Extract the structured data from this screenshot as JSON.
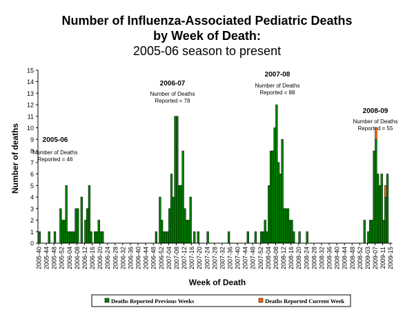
{
  "chart_data": {
    "type": "bar",
    "stacked": true,
    "title": [
      "Number of Influenza-Associated Pediatric Deaths",
      "by Week of Death:",
      "2005-06 season to present"
    ],
    "xlabel": "Week of Death",
    "ylabel": "Number of deaths",
    "ylim": [
      0,
      15
    ],
    "yticks": [
      0,
      1,
      2,
      3,
      4,
      5,
      6,
      7,
      8,
      9,
      10,
      11,
      12,
      13,
      14,
      15
    ],
    "x_range": [
      "2005-40",
      "2009-15"
    ],
    "xtick_labels": [
      "2005-40",
      "2005-44",
      "2005-48",
      "2005-52",
      "2006-04",
      "2006-08",
      "2006-12",
      "2006-16",
      "2006-20",
      "2006-24",
      "2006-28",
      "2006-32",
      "2006-36",
      "2006-40",
      "2006-44",
      "2006-48",
      "2006-52",
      "2007-04",
      "2007-08",
      "2007-12",
      "2007-16",
      "2007-20",
      "2007-24",
      "2007-28",
      "2007-32",
      "2007-36",
      "2007-40",
      "2007-44",
      "2007-48",
      "2007-52",
      "2008-04",
      "2008-08",
      "2008-12",
      "2008-16",
      "2008-20",
      "2008-24",
      "2008-28",
      "2008-32",
      "2008-36",
      "2008-40",
      "2008-44",
      "2008-48",
      "2008-52",
      "2009-03",
      "2009-07",
      "2009-11",
      "2009-15"
    ],
    "series": [
      {
        "name": "Deaths Reported Previous Weeks",
        "color": "#008000",
        "points": [
          [
            "2005-40",
            1
          ],
          [
            "2005-45",
            1
          ],
          [
            "2005-48",
            1
          ],
          [
            "2005-51",
            3
          ],
          [
            "2005-52",
            2
          ],
          [
            "2006-01",
            2
          ],
          [
            "2006-02",
            5
          ],
          [
            "2006-03",
            1
          ],
          [
            "2006-04",
            1
          ],
          [
            "2006-05",
            1
          ],
          [
            "2006-06",
            1
          ],
          [
            "2006-07",
            3
          ],
          [
            "2006-08",
            3
          ],
          [
            "2006-10",
            4
          ],
          [
            "2006-12",
            2
          ],
          [
            "2006-13",
            3
          ],
          [
            "2006-14",
            5
          ],
          [
            "2006-15",
            1
          ],
          [
            "2006-17",
            1
          ],
          [
            "2006-18",
            1
          ],
          [
            "2006-19",
            2
          ],
          [
            "2006-20",
            1
          ],
          [
            "2006-21",
            1
          ],
          [
            "2006-49",
            1
          ],
          [
            "2006-51",
            4
          ],
          [
            "2006-52",
            2
          ],
          [
            "2007-01",
            1
          ],
          [
            "2007-02",
            1
          ],
          [
            "2007-03",
            1
          ],
          [
            "2007-04",
            3
          ],
          [
            "2007-05",
            6
          ],
          [
            "2007-06",
            4
          ],
          [
            "2007-07",
            11
          ],
          [
            "2007-08",
            11
          ],
          [
            "2007-09",
            5
          ],
          [
            "2007-10",
            5
          ],
          [
            "2007-11",
            8
          ],
          [
            "2007-12",
            3
          ],
          [
            "2007-13",
            2
          ],
          [
            "2007-14",
            2
          ],
          [
            "2007-15",
            4
          ],
          [
            "2007-17",
            1
          ],
          [
            "2007-19",
            1
          ],
          [
            "2007-24",
            1
          ],
          [
            "2007-35",
            1
          ],
          [
            "2007-45",
            1
          ],
          [
            "2007-49",
            1
          ],
          [
            "2007-52",
            1
          ],
          [
            "2008-01",
            1
          ],
          [
            "2008-02",
            2
          ],
          [
            "2008-03",
            1
          ],
          [
            "2008-04",
            5
          ],
          [
            "2008-05",
            8
          ],
          [
            "2008-06",
            8
          ],
          [
            "2008-07",
            10
          ],
          [
            "2008-08",
            12
          ],
          [
            "2008-09",
            7
          ],
          [
            "2008-10",
            6
          ],
          [
            "2008-11",
            9
          ],
          [
            "2008-12",
            3
          ],
          [
            "2008-13",
            3
          ],
          [
            "2008-14",
            3
          ],
          [
            "2008-15",
            2
          ],
          [
            "2008-16",
            2
          ],
          [
            "2008-17",
            1
          ],
          [
            "2008-20",
            1
          ],
          [
            "2008-24",
            1
          ],
          [
            "2009-01",
            2
          ],
          [
            "2009-03",
            1
          ],
          [
            "2009-04",
            2
          ],
          [
            "2009-05",
            2
          ],
          [
            "2009-06",
            8
          ],
          [
            "2009-07",
            9
          ],
          [
            "2009-08",
            6
          ],
          [
            "2009-09",
            5
          ],
          [
            "2009-10",
            6
          ],
          [
            "2009-11",
            2
          ],
          [
            "2009-12",
            4
          ],
          [
            "2009-13",
            6
          ]
        ]
      },
      {
        "name": "Deaths Reported Current Week",
        "color": "#FF6600",
        "points": [
          [
            "2009-07",
            1
          ],
          [
            "2009-12",
            1
          ]
        ]
      }
    ],
    "annotations": [
      {
        "season": "2005-06",
        "line1": "Number of Deaths",
        "line2": "Reported = 46"
      },
      {
        "season": "2006-07",
        "line1": "Number of Deaths",
        "line2": "Reported = 78"
      },
      {
        "season": "2007-08",
        "line1": "Number of Deaths",
        "line2": "Reported = 88"
      },
      {
        "season": "2008-09",
        "line1": "Number of Deaths",
        "line2": "Reported = 55"
      }
    ],
    "legend_position": "bottom"
  }
}
